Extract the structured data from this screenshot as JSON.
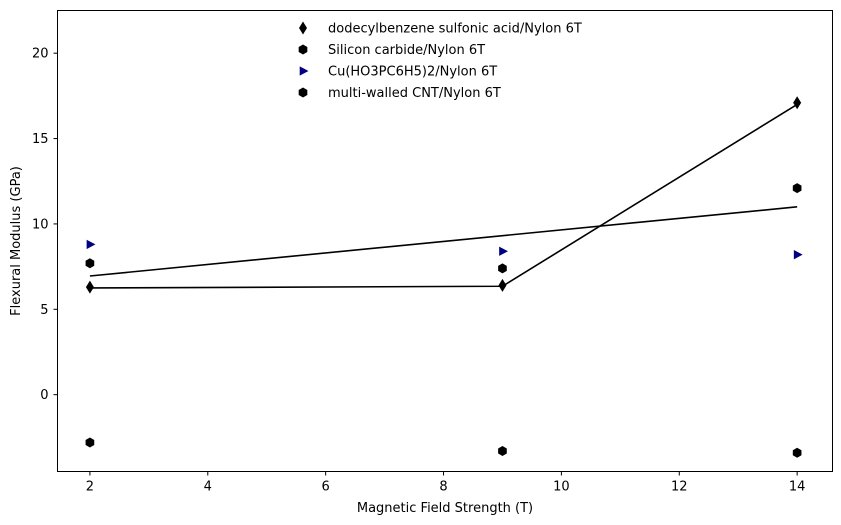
{
  "chart_data": {
    "type": "scatter",
    "xlabel": "Magnetic Field Strength (T)",
    "ylabel": "Flexural Modulus (GPa)",
    "xlim": [
      1.45,
      14.6
    ],
    "ylim": [
      -4.5,
      22.5
    ],
    "xticks": [
      2,
      4,
      6,
      8,
      10,
      12,
      14
    ],
    "yticks": [
      0,
      5,
      10,
      15,
      20
    ],
    "grid": false,
    "legend_position": "top-center",
    "series": [
      {
        "name": "dodecylbenzene sulfonic acid/Nylon 6T",
        "marker": "thin-diamond",
        "color": "#000000",
        "points": [
          [
            2,
            6.3
          ],
          [
            9,
            6.4
          ],
          [
            14,
            17.1
          ]
        ]
      },
      {
        "name": "Silicon carbide/Nylon 6T",
        "marker": "hexagon",
        "color": "#000000",
        "points": [
          [
            2,
            7.7
          ],
          [
            9,
            7.4
          ],
          [
            14,
            12.1
          ]
        ]
      },
      {
        "name": "Cu(HO3PC6H5)2/Nylon 6T",
        "marker": "triangle-right",
        "color": "#000080",
        "points": [
          [
            2,
            8.8
          ],
          [
            9,
            8.4
          ],
          [
            14,
            8.2
          ]
        ]
      },
      {
        "name": "multi-walled CNT/Nylon 6T",
        "marker": "hexagon",
        "color": "#000000",
        "points": [
          [
            2,
            -2.8
          ],
          [
            9,
            -3.3
          ],
          [
            14,
            -3.4
          ]
        ]
      }
    ],
    "lines": [
      {
        "color": "#000000",
        "points": [
          [
            2,
            6.25
          ],
          [
            9,
            6.35
          ],
          [
            14,
            17.0
          ]
        ]
      },
      {
        "color": "#000000",
        "points": [
          [
            2,
            6.95
          ],
          [
            14,
            11.0
          ]
        ]
      }
    ]
  }
}
